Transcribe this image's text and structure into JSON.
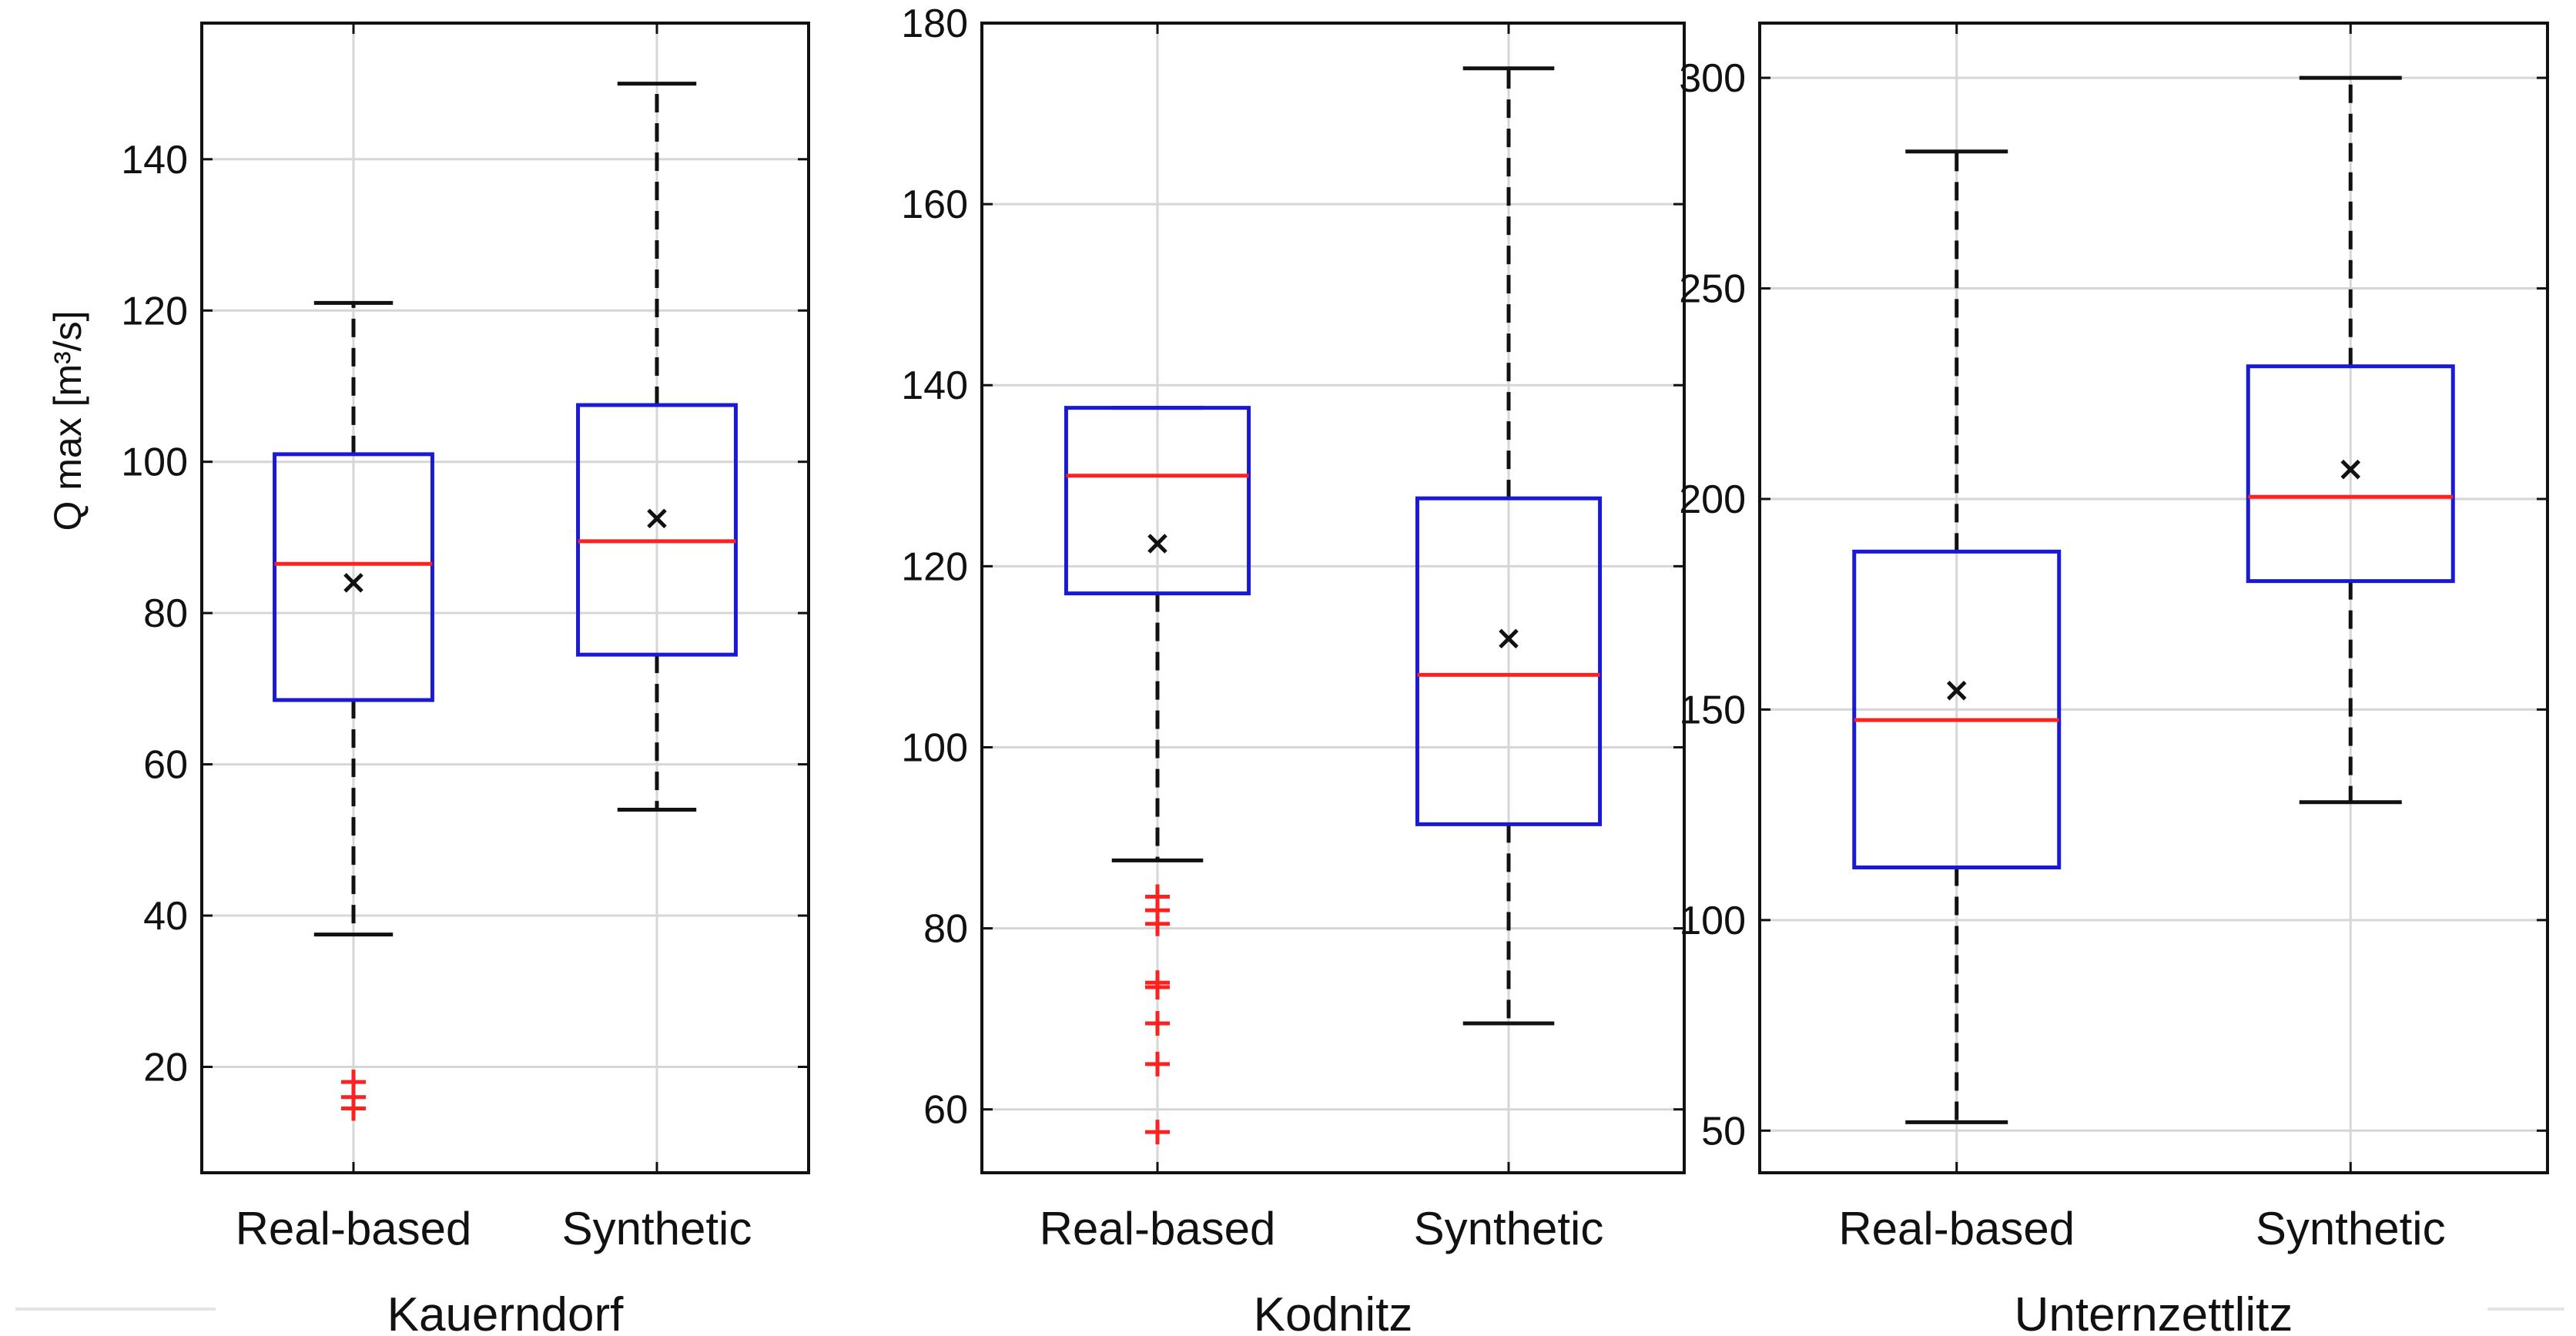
{
  "colors": {
    "box": "#1a1ad6",
    "median": "#ff2020",
    "outlier": "#ff2020",
    "whisker": "#111111",
    "grid": "#d6d6d6",
    "mean_marker": "#111111"
  },
  "chart_data": [
    {
      "type": "boxplot",
      "title": "",
      "xlabel": "Kauerndorf",
      "ylabel": "Q max [m³/s]",
      "ylim": [
        6,
        158
      ],
      "yticks": [
        20,
        40,
        60,
        80,
        100,
        120,
        140
      ],
      "categories": [
        "Real-based",
        "Synthetic"
      ],
      "boxes": [
        {
          "name": "Real-based",
          "whisker_low": 37.5,
          "q1": 68.5,
          "median": 86.5,
          "q3": 101,
          "whisker_high": 121,
          "mean": 84,
          "outliers": [
            14.5,
            16,
            18
          ]
        },
        {
          "name": "Synthetic",
          "whisker_low": 54,
          "q1": 74.5,
          "median": 89.5,
          "q3": 107.5,
          "whisker_high": 150,
          "mean": 92.5,
          "outliers": []
        }
      ]
    },
    {
      "type": "boxplot",
      "title": "",
      "xlabel": "Kodnitz",
      "ylabel": "",
      "ylim": [
        53,
        180
      ],
      "yticks": [
        60,
        80,
        100,
        120,
        140,
        160,
        180
      ],
      "categories": [
        "Real-based",
        "Synthetic"
      ],
      "boxes": [
        {
          "name": "Real-based",
          "whisker_low": 87.5,
          "q1": 117,
          "median": 130,
          "q3": 137.5,
          "whisker_high": 137.5,
          "mean": 122.5,
          "outliers": [
            57.5,
            65,
            69.5,
            73.5,
            74,
            80.5,
            82,
            83.5
          ]
        },
        {
          "name": "Synthetic",
          "whisker_low": 69.5,
          "q1": 91.5,
          "median": 108,
          "q3": 127.5,
          "whisker_high": 175,
          "mean": 112,
          "outliers": []
        }
      ]
    },
    {
      "type": "boxplot",
      "title": "",
      "xlabel": "Unternzettlitz",
      "ylabel": "",
      "ylim": [
        40,
        313
      ],
      "yticks": [
        50,
        100,
        150,
        200,
        250,
        300
      ],
      "categories": [
        "Real-based",
        "Synthetic"
      ],
      "boxes": [
        {
          "name": "Real-based",
          "whisker_low": 52,
          "q1": 112.5,
          "median": 147.5,
          "q3": 187.5,
          "whisker_high": 282.5,
          "mean": 154.5,
          "outliers": []
        },
        {
          "name": "Synthetic",
          "whisker_low": 128,
          "q1": 180.5,
          "median": 200.5,
          "q3": 231.5,
          "whisker_high": 300,
          "mean": 207,
          "outliers": []
        }
      ]
    }
  ]
}
